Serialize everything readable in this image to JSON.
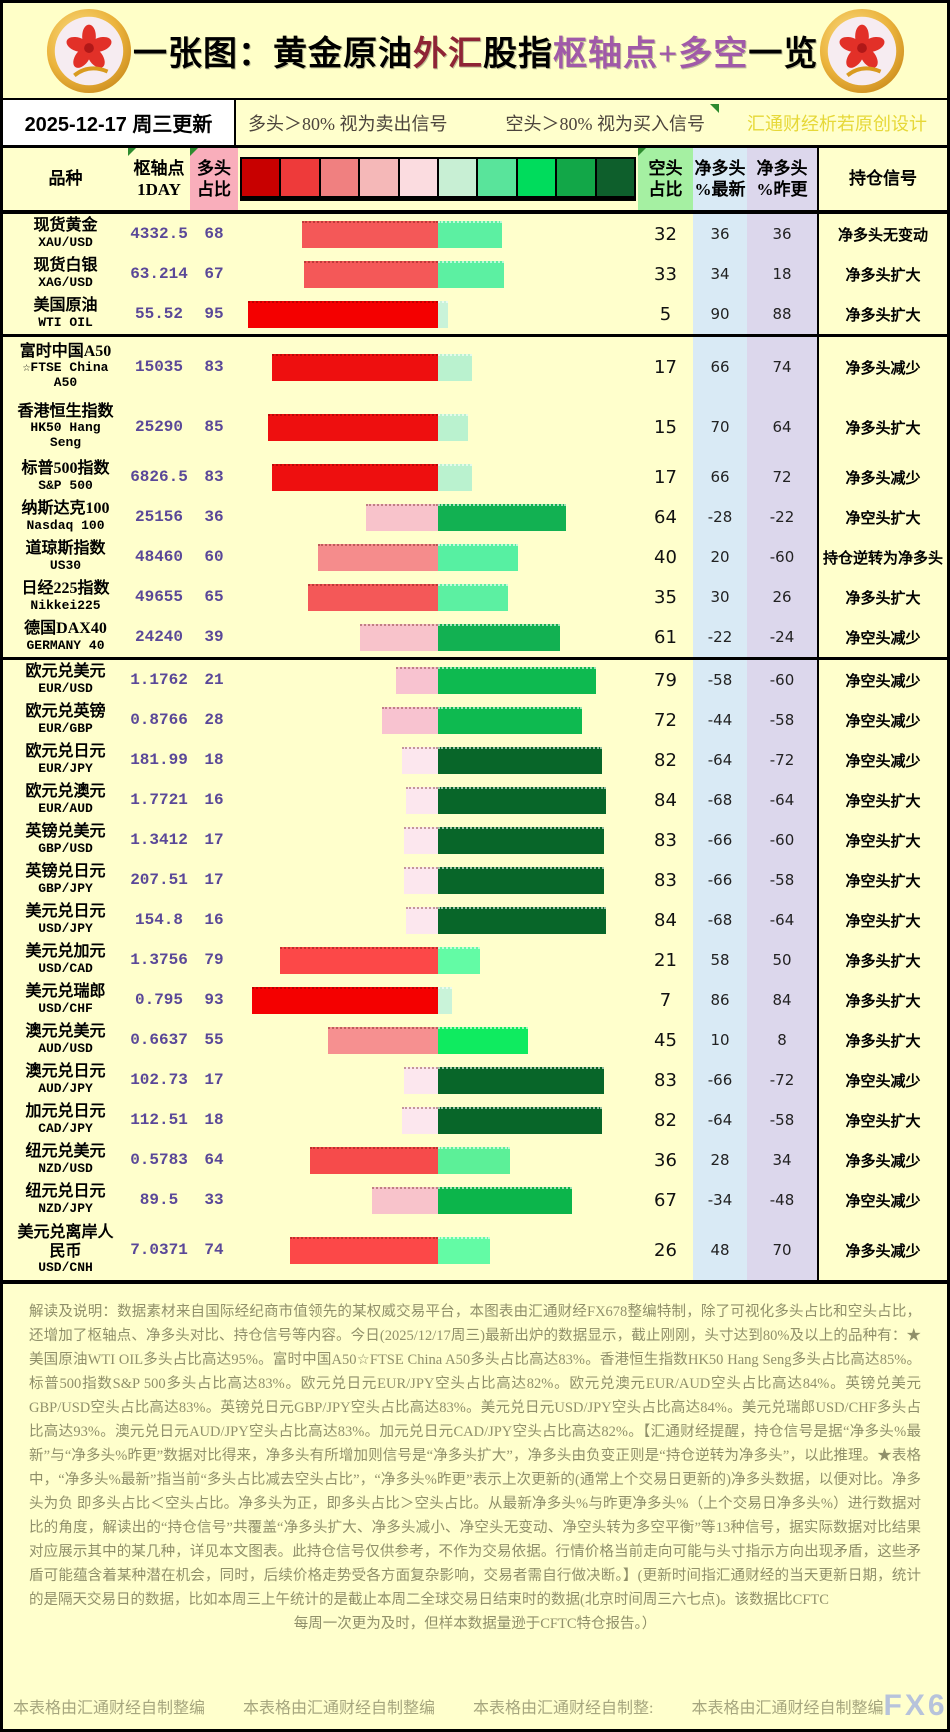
{
  "title": {
    "part1": "一张图：黄金原油",
    "part2": "外汇",
    "part3": "股指",
    "part4": "枢轴点+多空",
    "part5": "一览"
  },
  "legend": {
    "date": "2025-12-17 周三更新",
    "long_note": "多头＞80% 视为卖出信号",
    "short_note": "空头＞80% 视为买入信号",
    "credit": "汇通财经析若原创设计"
  },
  "header": {
    "product": "品种",
    "pivot_l1": "枢轴点",
    "pivot_l2": "1DAY",
    "long_l1": "多头",
    "long_l2": "占比",
    "short_l1": "空头",
    "short_l2": "占比",
    "net_latest_l1": "净多头",
    "net_latest_l2": "%最新",
    "net_prev_l1": "净多头",
    "net_prev_l2": "%昨更",
    "signal": "持仓信号"
  },
  "colors": {
    "page_bg": "#FFFFCC",
    "long_header_bg": "#F9AEBB",
    "short_header_bg": "#A5F0A2",
    "net_latest_bg": "#D9EAF5",
    "net_prev_bg": "#DCD7EC",
    "title_red": "#8E2435",
    "title_purple": "#A05AA8",
    "pivot_text": "#5A4898",
    "credit_yellow": "#E6D838",
    "disclaimer_text": "#90906A",
    "watermark_blue": "#B7C3DB",
    "scale_colors": [
      "#C80000",
      "#EE3A3A",
      "#F08080",
      "#F5B8B8",
      "#FBDCE0",
      "#C8EFD4",
      "#59E49B",
      "#00DC5C",
      "#12A748",
      "#0E5F2C"
    ]
  },
  "chart_data": {
    "type": "bar",
    "note": "diverging bars: red = long% (left of center), green = short% (right of center), 2px per %",
    "categories": [
      "XAU/USD",
      "XAG/USD",
      "WTI OIL",
      "FTSE China A50",
      "HK50 Hang Seng",
      "S&P 500",
      "Nasdaq 100",
      "US30",
      "Nikkei225",
      "GERMANY 40",
      "EUR/USD",
      "EUR/GBP",
      "EUR/JPY",
      "EUR/AUD",
      "GBP/USD",
      "GBP/JPY",
      "USD/JPY",
      "USD/CAD",
      "USD/CHF",
      "AUD/USD",
      "AUD/JPY",
      "CAD/JPY",
      "NZD/USD",
      "NZD/JPY",
      "USD/CNH"
    ],
    "series": [
      {
        "name": "多头占比",
        "values": [
          68,
          67,
          95,
          83,
          85,
          83,
          36,
          60,
          65,
          39,
          21,
          28,
          18,
          16,
          17,
          17,
          16,
          79,
          93,
          55,
          17,
          18,
          64,
          33,
          74
        ]
      },
      {
        "name": "空头占比",
        "values": [
          32,
          33,
          5,
          17,
          15,
          17,
          64,
          40,
          35,
          61,
          79,
          72,
          82,
          84,
          83,
          83,
          84,
          21,
          7,
          45,
          83,
          82,
          36,
          67,
          26
        ]
      },
      {
        "name": "净多头%最新",
        "values": [
          36,
          34,
          90,
          66,
          70,
          66,
          -28,
          20,
          30,
          -22,
          -58,
          -44,
          -64,
          -68,
          -66,
          -66,
          -68,
          58,
          86,
          10,
          -66,
          -64,
          28,
          -34,
          48
        ]
      },
      {
        "name": "净多头%昨更",
        "values": [
          36,
          18,
          88,
          74,
          64,
          72,
          -22,
          -60,
          26,
          -24,
          -60,
          -58,
          -72,
          -64,
          -60,
          -58,
          -64,
          50,
          84,
          8,
          -72,
          -58,
          34,
          -48,
          70
        ]
      }
    ],
    "xlim_pct": [
      -100,
      100
    ]
  },
  "groups": [
    {
      "rows": [
        {
          "name_lines": [
            "现货黄金",
            "XAU/USD"
          ],
          "pivot": "4332.5",
          "long": 68,
          "short": 32,
          "net_latest": "36",
          "net_prev": "36",
          "signal": "净多头无变动",
          "long_color": "#F45858",
          "short_color": "#5CF0A2"
        },
        {
          "name_lines": [
            "现货白银",
            "XAG/USD"
          ],
          "pivot": "63.214",
          "long": 67,
          "short": 33,
          "net_latest": "34",
          "net_prev": "18",
          "signal": "净多头扩大",
          "long_color": "#F45858",
          "short_color": "#5CF0A2"
        },
        {
          "name_lines": [
            "美国原油",
            "WTI OIL"
          ],
          "pivot": "55.52",
          "long": 95,
          "short": 5,
          "net_latest": "90",
          "net_prev": "88",
          "signal": "净多头扩大",
          "long_color": "#F40000",
          "short_color": "#C9F3D9"
        }
      ]
    },
    {
      "rows": [
        {
          "name_lines": [
            "富时中国A50",
            "☆FTSE China",
            "A50"
          ],
          "pivot": "15035",
          "long": 83,
          "short": 17,
          "net_latest": "66",
          "net_prev": "74",
          "signal": "净多头减少",
          "long_color": "#EE0F0F",
          "short_color": "#BAF2CF"
        },
        {
          "name_lines": [
            "香港恒生指数",
            "HK50 Hang",
            "Seng"
          ],
          "pivot": "25290",
          "long": 85,
          "short": 15,
          "net_latest": "70",
          "net_prev": "64",
          "signal": "净多头扩大",
          "long_color": "#EE0F0F",
          "short_color": "#BAF2CF"
        },
        {
          "name_lines": [
            "标普500指数",
            "S&P 500"
          ],
          "pivot": "6826.5",
          "long": 83,
          "short": 17,
          "net_latest": "66",
          "net_prev": "72",
          "signal": "净多头减少",
          "long_color": "#EE0F0F",
          "short_color": "#BAF2CF"
        },
        {
          "name_lines": [
            "纳斯达克100",
            "Nasdaq 100"
          ],
          "pivot": "25156",
          "long": 36,
          "short": 64,
          "net_latest": "-28",
          "net_prev": "-22",
          "signal": "净空头扩大",
          "long_color": "#F8C3CB",
          "short_color": "#12B152"
        },
        {
          "name_lines": [
            "道琼斯指数",
            "US30"
          ],
          "pivot": "48460",
          "long": 60,
          "short": 40,
          "net_latest": "20",
          "net_prev": "-60",
          "signal": "持仓逆转为净多头",
          "long_color": "#F58C8C",
          "short_color": "#57F0A2"
        },
        {
          "name_lines": [
            "日经225指数",
            "Nikkei225"
          ],
          "pivot": "49655",
          "long": 65,
          "short": 35,
          "net_latest": "30",
          "net_prev": "26",
          "signal": "净多头扩大",
          "long_color": "#F45858",
          "short_color": "#5CF0A2"
        },
        {
          "name_lines": [
            "德国DAX40",
            "GERMANY 40"
          ],
          "pivot": "24240",
          "long": 39,
          "short": 61,
          "net_latest": "-22",
          "net_prev": "-24",
          "signal": "净空头减少",
          "long_color": "#F8C3CB",
          "short_color": "#12B152"
        }
      ]
    },
    {
      "rows": [
        {
          "name_lines": [
            "欧元兑美元",
            "EUR/USD"
          ],
          "pivot": "1.1762",
          "long": 21,
          "short": 79,
          "net_latest": "-58",
          "net_prev": "-60",
          "signal": "净空头减少",
          "long_color": "#F8C3D0",
          "short_color": "#0EBA50"
        },
        {
          "name_lines": [
            "欧元兑英镑",
            "EUR/GBP"
          ],
          "pivot": "0.8766",
          "long": 28,
          "short": 72,
          "net_latest": "-44",
          "net_prev": "-58",
          "signal": "净空头减少",
          "long_color": "#F8C3D0",
          "short_color": "#0EBA50"
        },
        {
          "name_lines": [
            "欧元兑日元",
            "EUR/JPY"
          ],
          "pivot": "181.99",
          "long": 18,
          "short": 82,
          "net_latest": "-64",
          "net_prev": "-72",
          "signal": "净空头减少",
          "long_color": "#FCE7EE",
          "short_color": "#086629"
        },
        {
          "name_lines": [
            "欧元兑澳元",
            "EUR/AUD"
          ],
          "pivot": "1.7721",
          "long": 16,
          "short": 84,
          "net_latest": "-68",
          "net_prev": "-64",
          "signal": "净空头扩大",
          "long_color": "#FCE7EE",
          "short_color": "#086629"
        },
        {
          "name_lines": [
            "英镑兑美元",
            "GBP/USD"
          ],
          "pivot": "1.3412",
          "long": 17,
          "short": 83,
          "net_latest": "-66",
          "net_prev": "-60",
          "signal": "净空头扩大",
          "long_color": "#FCE7EE",
          "short_color": "#086629"
        },
        {
          "name_lines": [
            "英镑兑日元",
            "GBP/JPY"
          ],
          "pivot": "207.51",
          "long": 17,
          "short": 83,
          "net_latest": "-66",
          "net_prev": "-58",
          "signal": "净空头扩大",
          "long_color": "#FCE7EE",
          "short_color": "#086629"
        },
        {
          "name_lines": [
            "美元兑日元",
            "USD/JPY"
          ],
          "pivot": "154.8",
          "long": 16,
          "short": 84,
          "net_latest": "-68",
          "net_prev": "-64",
          "signal": "净空头扩大",
          "long_color": "#FCE7EE",
          "short_color": "#086629"
        },
        {
          "name_lines": [
            "美元兑加元",
            "USD/CAD"
          ],
          "pivot": "1.3756",
          "long": 79,
          "short": 21,
          "net_latest": "58",
          "net_prev": "50",
          "signal": "净多头扩大",
          "long_color": "#FC4848",
          "short_color": "#63FBA5"
        },
        {
          "name_lines": [
            "美元兑瑞郎",
            "USD/CHF"
          ],
          "pivot": "0.795",
          "long": 93,
          "short": 7,
          "net_latest": "86",
          "net_prev": "84",
          "signal": "净多头扩大",
          "long_color": "#F40000",
          "short_color": "#C9F3D9"
        },
        {
          "name_lines": [
            "澳元兑美元",
            "AUD/USD"
          ],
          "pivot": "0.6637",
          "long": 55,
          "short": 45,
          "net_latest": "10",
          "net_prev": "8",
          "signal": "净多头扩大",
          "long_color": "#F69090",
          "short_color": "#0FEB60"
        },
        {
          "name_lines": [
            "澳元兑日元",
            "AUD/JPY"
          ],
          "pivot": "102.73",
          "long": 17,
          "short": 83,
          "net_latest": "-66",
          "net_prev": "-72",
          "signal": "净空头减少",
          "long_color": "#FCE7EE",
          "short_color": "#086629"
        },
        {
          "name_lines": [
            "加元兑日元",
            "CAD/JPY"
          ],
          "pivot": "112.51",
          "long": 18,
          "short": 82,
          "net_latest": "-64",
          "net_prev": "-58",
          "signal": "净空头扩大",
          "long_color": "#FCE7EE",
          "short_color": "#086629"
        },
        {
          "name_lines": [
            "纽元兑美元",
            "NZD/USD"
          ],
          "pivot": "0.5783",
          "long": 64,
          "short": 36,
          "net_latest": "28",
          "net_prev": "34",
          "signal": "净多头减少",
          "long_color": "#F64B4B",
          "short_color": "#5CF098"
        },
        {
          "name_lines": [
            "纽元兑日元",
            "NZD/JPY"
          ],
          "pivot": "89.5",
          "long": 33,
          "short": 67,
          "net_latest": "-34",
          "net_prev": "-48",
          "signal": "净空头减少",
          "long_color": "#F8C3CB",
          "short_color": "#0CB54B"
        },
        {
          "name_lines": [
            "美元兑离岸人",
            "民币",
            "USD/CNH"
          ],
          "pivot": "7.0371",
          "long": 74,
          "short": 26,
          "net_latest": "48",
          "net_prev": "70",
          "signal": "净多头减少",
          "long_color": "#FC4848",
          "short_color": "#63FBA5"
        }
      ]
    }
  ],
  "disclaimer": {
    "body": "解读及说明：数据素材来自国际经纪商市值领先的某权威交易平台，本图表由汇通财经FX678整编特制，除了可视化多头占比和空头占比，还增加了枢轴点、净多头对比、持仓信号等内容。今日(2025/12/17周三)最新出炉的数据显示，截止刚刚，头寸达到80%及以上的品种有：★ 美国原油WTI OIL多头占比高达95%。富时中国A50☆FTSE China A50多头占比高达83%。香港恒生指数HK50 Hang Seng多头占比高达85%。标普500指数S&P 500多头占比高达83%。欧元兑日元EUR/JPY空头占比高达82%。欧元兑澳元EUR/AUD空头占比高达84%。英镑兑美元GBP/USD空头占比高达83%。英镑兑日元GBP/JPY空头占比高达83%。美元兑日元USD/JPY空头占比高达84%。美元兑瑞郎USD/CHF多头占比高达93%。澳元兑日元AUD/JPY空头占比高达83%。加元兑日元CAD/JPY空头占比高达82%。【汇通财经提醒，持仓信号是据“净多头%最新”与“净多头%昨更”数据对比得来，净多头有所增加则信号是“净多头扩大”，净多头由负变正则是“持仓逆转为净多头”，以此推理。★表格中，“净多头%最新”指当前“多头占比减去空头占比”，“净多头%昨更”表示上次更新的(通常上个交易日更新的)净多头数据，以便对比。净多头为负 即多头占比＜空头占比。净多头为正，即多头占比＞空头占比。从最新净多头%与昨更净多头%（上个交易日净多头%）进行数据对比的角度，解读出的“持仓信号”共覆盖“净多头扩大、净多头减小、净空头无变动、净空头转为多空平衡”等13种信号，据实际数据对比结果对应展示其中的某几种，详见本文图表。此持仓信号仅供参考，不作为交易依据。行情价格当前走向可能与头寸指示方向出现矛盾，这些矛盾可能蕴含着某种潜在机会，同时，后续价格走势受各方面复杂影响，交易者需自行做决断。】(更新时间指汇通财经的当天更新日期，统计的是隔天交易日的数据，比如本周三上午统计的是截止本周二全球交易日结束时的数据(北京时间周三六七点)。该数据比CFTC",
    "last_line": "每周一次更为及时，但样本数据量逊于CFTC特仓报告。）"
  },
  "footer": {
    "items": [
      "本表格由汇通财经自制整编",
      "本表格由汇通财经自制整编",
      "本表格由汇通财经自制整:",
      "本表格由汇通财经自制整编"
    ],
    "watermark": "FX678"
  }
}
